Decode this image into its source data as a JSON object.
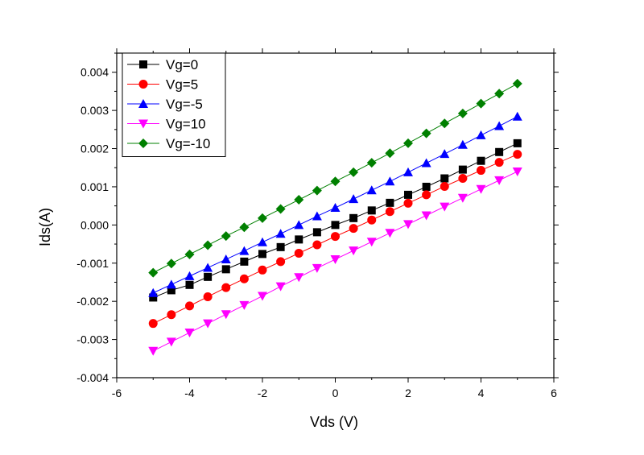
{
  "chart_data": {
    "type": "scatter",
    "title": "",
    "xlabel": "Vds (V)",
    "ylabel": "Ids(A)",
    "xlim": [
      -6,
      6
    ],
    "ylim": [
      -0.004,
      0.0045
    ],
    "xticks": [
      -6,
      -4,
      -2,
      0,
      2,
      4,
      6
    ],
    "xtick_labels": [
      "-6",
      "-4",
      "-2",
      "0",
      "2",
      "4",
      "6"
    ],
    "yticks": [
      -0.004,
      -0.003,
      -0.002,
      -0.001,
      0.0,
      0.001,
      0.002,
      0.003,
      0.004
    ],
    "ytick_labels": [
      "-0.004",
      "-0.003",
      "-0.002",
      "-0.001",
      "0.000",
      "0.001",
      "0.002",
      "0.003",
      "0.004"
    ],
    "grid": false,
    "legend_position": "top-left",
    "x": [
      -5,
      -4.5,
      -4,
      -3.5,
      -3,
      -2.5,
      -2,
      -1.5,
      -1,
      -0.5,
      0,
      0.5,
      1,
      1.5,
      2,
      2.5,
      3,
      3.5,
      4,
      4.5,
      5
    ],
    "series": [
      {
        "name": "Vg=0",
        "color": "#000000",
        "marker": "square",
        "values": [
          -0.0019,
          -0.00171,
          -0.00157,
          -0.00136,
          -0.00116,
          -0.00096,
          -0.00076,
          -0.00058,
          -0.00038,
          -0.00019,
          0.0,
          0.00018,
          0.00038,
          0.00058,
          0.00079,
          0.001,
          0.00122,
          0.00145,
          0.00168,
          0.00191,
          0.00214
        ]
      },
      {
        "name": "Vg=5",
        "color": "#ff0000",
        "marker": "circle",
        "values": [
          -0.00258,
          -0.00235,
          -0.00212,
          -0.00188,
          -0.00164,
          -0.00141,
          -0.00118,
          -0.00096,
          -0.00074,
          -0.00052,
          -0.0003,
          -9e-05,
          0.00013,
          0.00035,
          0.00057,
          0.00079,
          0.00101,
          0.00122,
          0.00143,
          0.00164,
          0.00185
        ]
      },
      {
        "name": "Vg=-5",
        "color": "#0000ff",
        "marker": "triangle-up",
        "values": [
          -0.00178,
          -0.00156,
          -0.00134,
          -0.00112,
          -0.0009,
          -0.00068,
          -0.00045,
          -0.00023,
          0.0,
          0.00023,
          0.00045,
          0.00068,
          0.00091,
          0.00114,
          0.00138,
          0.00162,
          0.00186,
          0.0021,
          0.00235,
          0.00259,
          0.00284
        ]
      },
      {
        "name": "Vg=10",
        "color": "#ff00ff",
        "marker": "triangle-down",
        "values": [
          -0.0033,
          -0.00306,
          -0.00282,
          -0.00258,
          -0.00234,
          -0.0021,
          -0.00186,
          -0.00161,
          -0.00137,
          -0.00113,
          -0.0009,
          -0.00067,
          -0.00044,
          -0.00021,
          2e-05,
          0.00025,
          0.00048,
          0.00071,
          0.00094,
          0.00117,
          0.0014
        ]
      },
      {
        "name": "Vg=-10",
        "color": "#008000",
        "marker": "diamond",
        "values": [
          -0.00125,
          -0.00101,
          -0.00077,
          -0.00053,
          -0.00029,
          -6e-05,
          0.00018,
          0.00042,
          0.00066,
          0.0009,
          0.00114,
          0.00138,
          0.00163,
          0.00188,
          0.00214,
          0.0024,
          0.00266,
          0.00292,
          0.00318,
          0.00344,
          0.0037
        ]
      }
    ]
  }
}
